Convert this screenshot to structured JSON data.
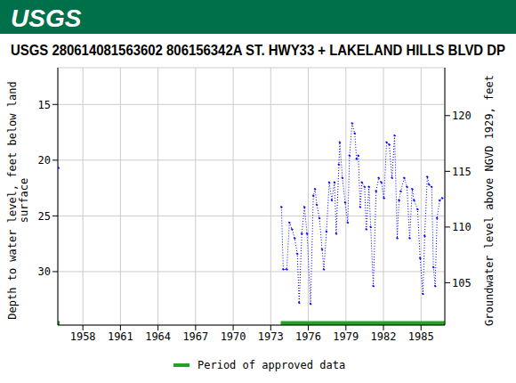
{
  "header": {
    "logo": "USGS"
  },
  "chart_data": {
    "type": "line",
    "title": "USGS 280614081563602 806156342A ST. HWY33 + LAKELAND HILLS BLVD DP",
    "y_label": "Depth to water level, feet below land\nsurface",
    "y2_label": "Groundwater level above NGVD 1929, feet",
    "x": [
      1956.05,
      1965.0,
      1973.85,
      1974.0,
      1974.28,
      1974.49,
      1974.7,
      1974.91,
      1975.12,
      1975.27,
      1975.48,
      1975.69,
      1975.9,
      1976.18,
      1976.4,
      1976.54,
      1976.68,
      1976.89,
      1977.1,
      1977.24,
      1977.45,
      1977.67,
      1977.88,
      1978.09,
      1978.23,
      1978.44,
      1978.51,
      1978.72,
      1978.94,
      1979.15,
      1979.29,
      1979.5,
      1979.71,
      1979.85,
      1979.99,
      1980.14,
      1980.28,
      1980.49,
      1980.63,
      1980.84,
      1980.98,
      1981.19,
      1981.41,
      1981.62,
      1981.83,
      1982.04,
      1982.25,
      1982.46,
      1982.68,
      1982.89,
      1983.1,
      1983.24,
      1983.38,
      1983.66,
      1983.88,
      1984.09,
      1984.3,
      1984.44,
      1984.72,
      1984.93,
      1985.15,
      1985.29,
      1985.5,
      1985.64,
      1985.85,
      1985.99,
      1986.13,
      1986.28,
      1986.49,
      1986.7
    ],
    "values": [
      20.7,
      null,
      24.2,
      29.8,
      29.8,
      25.6,
      26.2,
      27.0,
      28.4,
      32.8,
      26.6,
      24.2,
      26.6,
      32.9,
      23.2,
      22.6,
      24.0,
      25.2,
      28.0,
      29.8,
      26.4,
      22.0,
      23.6,
      22.0,
      26.6,
      20.4,
      18.4,
      21.6,
      23.8,
      25.6,
      19.6,
      16.7,
      17.6,
      19.9,
      19.6,
      24.2,
      22.0,
      22.4,
      26.2,
      22.4,
      26.0,
      31.3,
      22.8,
      21.6,
      22.0,
      23.4,
      18.4,
      18.6,
      21.6,
      17.8,
      27.0,
      23.6,
      22.8,
      21.6,
      22.4,
      27.0,
      22.6,
      23.6,
      24.4,
      28.8,
      32.0,
      26.8,
      21.5,
      22.2,
      22.4,
      29.6,
      31.3,
      25.2,
      23.6,
      23.4
    ],
    "color": "#0000ff",
    "marker": "circle",
    "line_style": "dotted",
    "xlim": [
      1956.0,
      1986.9
    ],
    "xticks": [
      1958,
      1961,
      1964,
      1967,
      1970,
      1973,
      1976,
      1979,
      1982,
      1985
    ],
    "ylim": [
      34.8,
      11.7
    ],
    "yticks": [
      15,
      20,
      25,
      30
    ],
    "y2lim": [
      101.2,
      124.3
    ],
    "y2ticks": [
      105,
      110,
      115,
      120
    ],
    "approved_periods": {
      "name": "Period of approved data",
      "color": "#1fa51f",
      "ranges": [
        [
          1956.0,
          1956.15
        ],
        [
          1973.8,
          1986.9
        ]
      ]
    },
    "grid": true,
    "legend": "bottom"
  }
}
